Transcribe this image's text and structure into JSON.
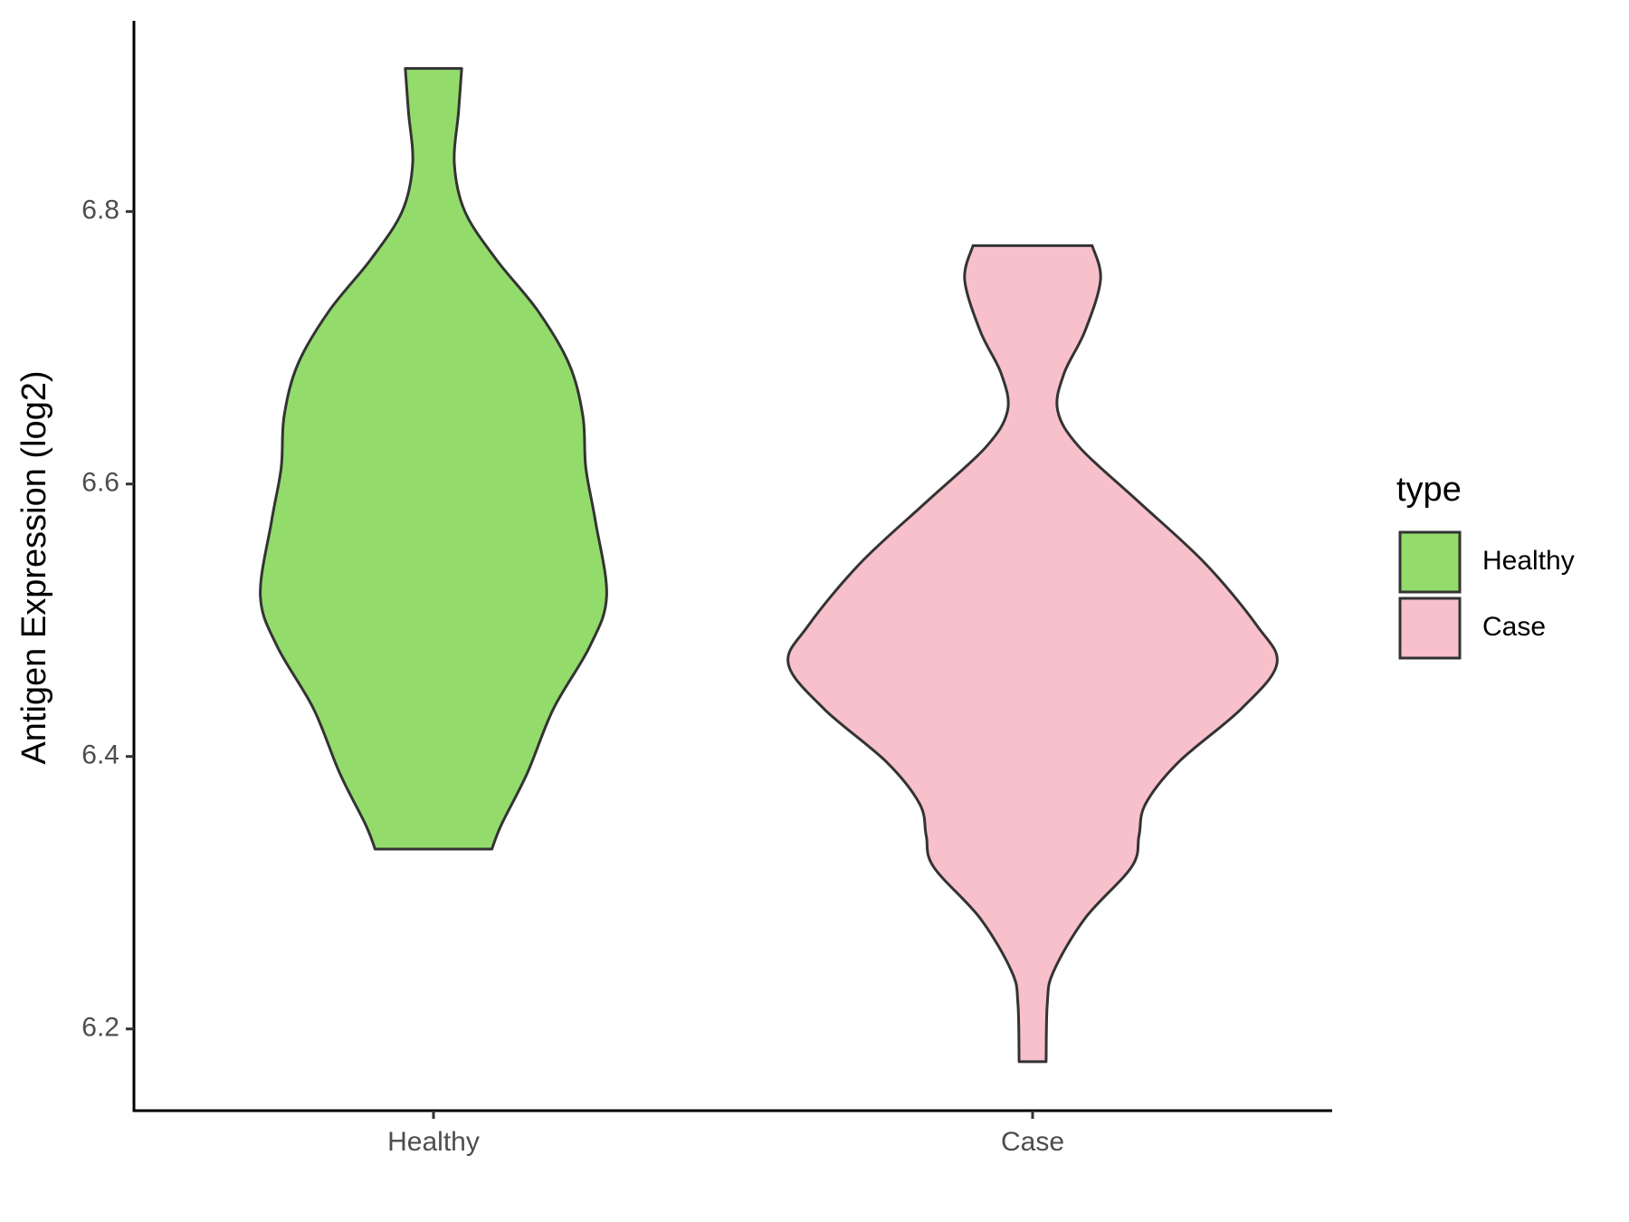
{
  "chart_data": {
    "type": "violin",
    "y_label": "Antigen Expression (log2)",
    "categories": [
      "Healthy",
      "Case"
    ],
    "legend_title": "type",
    "legend_position": "right",
    "ylim": [
      6.14,
      6.94
    ],
    "yticks": [
      6.2,
      6.4,
      6.6,
      6.8
    ],
    "grid": false,
    "series": [
      {
        "name": "Healthy",
        "color": "#93dc6b",
        "y": [
          6.905,
          6.873,
          6.835,
          6.8,
          6.765,
          6.727,
          6.688,
          6.65,
          6.612,
          6.573,
          6.518,
          6.481,
          6.435,
          6.388,
          6.35,
          6.332
        ],
        "density": [
          0.115,
          0.102,
          0.085,
          0.128,
          0.255,
          0.426,
          0.553,
          0.609,
          0.621,
          0.66,
          0.706,
          0.638,
          0.489,
          0.383,
          0.277,
          0.238
        ]
      },
      {
        "name": "Case",
        "color": "#f7c0cb",
        "y": [
          6.775,
          6.75,
          6.712,
          6.681,
          6.654,
          6.627,
          6.588,
          6.542,
          6.496,
          6.468,
          6.435,
          6.396,
          6.365,
          6.342,
          6.319,
          6.281,
          6.242,
          6.219,
          6.176
        ],
        "density": [
          0.243,
          0.277,
          0.213,
          0.128,
          0.102,
          0.191,
          0.426,
          0.702,
          0.915,
          0.996,
          0.851,
          0.596,
          0.46,
          0.434,
          0.404,
          0.213,
          0.085,
          0.06,
          0.055
        ]
      }
    ]
  }
}
